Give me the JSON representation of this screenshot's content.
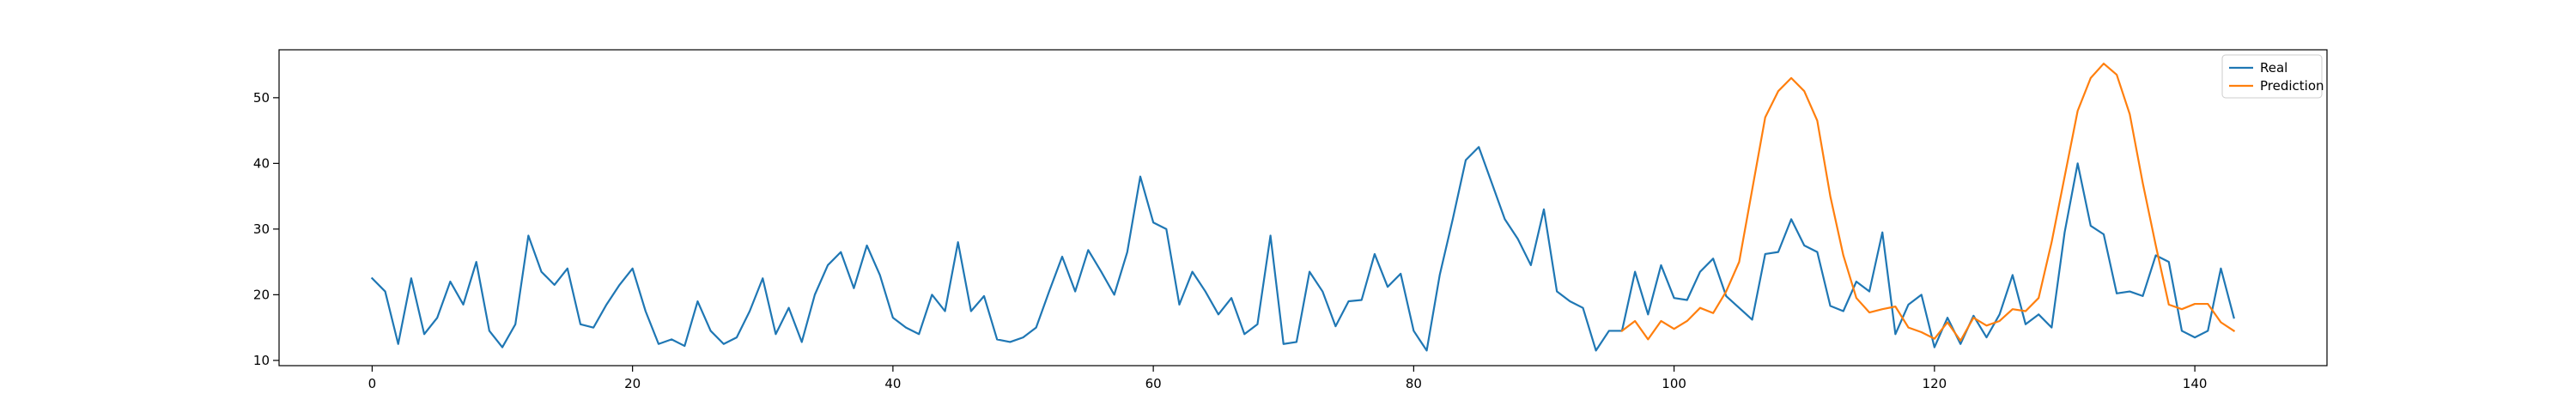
{
  "chart_data": {
    "type": "line",
    "title": "",
    "xlabel": "",
    "ylabel": "",
    "xlim": [
      -7.15,
      150.15
    ],
    "ylim": [
      9.2,
      57.3
    ],
    "x_ticks": [
      0,
      20,
      40,
      60,
      80,
      100,
      120,
      140
    ],
    "y_ticks": [
      10,
      20,
      30,
      40,
      50
    ],
    "grid": false,
    "legend_position": "top-right",
    "series": [
      {
        "name": "Real",
        "color": "#1f77b4",
        "x_start": 0,
        "values": [
          22.5,
          20.5,
          12.5,
          22.5,
          14.0,
          16.5,
          22.0,
          18.5,
          25.0,
          14.5,
          12.0,
          15.5,
          29.0,
          23.5,
          21.5,
          24.0,
          15.5,
          15.0,
          18.5,
          21.5,
          24.0,
          17.5,
          12.5,
          13.2,
          12.2,
          19.0,
          14.5,
          12.5,
          13.5,
          17.5,
          22.5,
          14.0,
          18.0,
          12.8,
          20.0,
          24.5,
          26.5,
          21.0,
          27.5,
          23.0,
          16.5,
          15.0,
          14.0,
          20.0,
          17.5,
          28.0,
          17.5,
          19.8,
          13.2,
          12.8,
          13.5,
          15.0,
          20.5,
          25.8,
          20.5,
          26.8,
          23.5,
          20.0,
          26.5,
          38.0,
          31.0,
          30.0,
          18.5,
          23.5,
          20.5,
          17.0,
          19.5,
          14.0,
          15.5,
          29.0,
          12.5,
          12.8,
          23.5,
          20.5,
          15.2,
          19.0,
          19.2,
          26.2,
          21.2,
          23.2,
          14.5,
          11.5,
          23.0,
          31.5,
          40.5,
          42.5,
          37.0,
          31.5,
          28.5,
          24.5,
          33.0,
          20.5,
          19.0,
          18.0,
          11.5,
          14.5,
          14.5,
          23.5,
          17.0,
          24.5,
          19.5,
          19.2,
          23.5,
          25.5,
          19.8,
          18.0,
          16.2,
          26.2,
          26.5,
          31.5,
          27.5,
          26.5,
          18.3,
          17.5,
          22.0,
          20.5,
          29.5,
          14.0,
          18.5,
          20.0,
          12.0,
          16.5,
          12.5,
          16.8,
          13.5,
          17.0,
          23.0,
          15.5,
          17.0,
          15.0,
          29.5,
          40.0,
          30.5,
          29.2,
          20.2,
          20.5,
          19.8,
          26.0,
          25.0,
          14.5,
          13.5,
          14.5,
          24.0,
          16.5
        ]
      },
      {
        "name": "Prediction",
        "color": "#ff7f0e",
        "x_start": 96,
        "values": [
          14.5,
          16.0,
          13.2,
          16.0,
          14.8,
          16.0,
          18.0,
          17.2,
          20.5,
          25.0,
          36.0,
          47.0,
          51.0,
          53.0,
          51.0,
          46.5,
          35.0,
          26.0,
          19.5,
          17.3,
          17.8,
          18.2,
          15.0,
          14.3,
          13.3,
          15.8,
          13.0,
          16.5,
          15.3,
          16.0,
          17.8,
          17.5,
          19.5,
          28.0,
          38.0,
          48.0,
          53.0,
          55.2,
          53.5,
          47.5,
          37.0,
          27.5,
          18.5,
          17.8,
          18.6,
          18.6,
          15.8,
          14.5
        ]
      }
    ]
  }
}
